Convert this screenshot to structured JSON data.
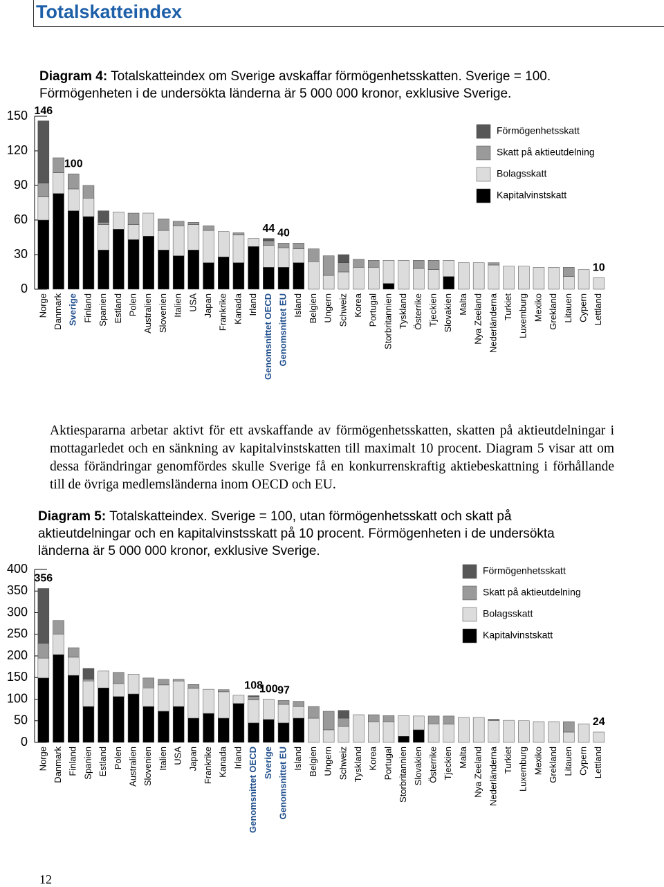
{
  "header": {
    "title": "Totalskatteindex"
  },
  "chart_data": [
    {
      "type": "bar",
      "stacked": true,
      "title_label": "Diagram 4:",
      "title": "Totalskatteindex om Sverige avskaffar förmögenhetsskatten. Sverige = 100. Förmögenheten i de undersökta länderna är 5 000 000 kronor, exklusive Sverige.",
      "categories": [
        "Norge",
        "Danmark",
        "Sverige",
        "Finland",
        "Spanien",
        "Estland",
        "Polen",
        "Australien",
        "Slovenien",
        "Italien",
        "USA",
        "Japan",
        "Frankrike",
        "Kanada",
        "Irland",
        "Genomsnittet OECD",
        "Genomsnittet EU",
        "Island",
        "Belgien",
        "Ungern",
        "Schweiz",
        "Korea",
        "Portugal",
        "Storbritannien",
        "Tyskland",
        "Österrike",
        "Tjeckien",
        "Slovakien",
        "Malta",
        "Nya Zeeland",
        "Nederländerna",
        "Turkiet",
        "Luxemburg",
        "Mexiko",
        "Grekland",
        "Litauen",
        "Cypern",
        "Lettland"
      ],
      "highlighted": [
        2,
        15,
        16
      ],
      "series": [
        {
          "name": "Kapitalvinstskatt",
          "color": "#000000",
          "values": [
            60,
            83,
            68,
            63,
            34,
            52,
            43,
            46,
            34,
            29,
            34,
            23,
            28,
            23,
            37,
            19,
            19,
            23,
            0,
            0,
            0,
            0,
            0,
            5,
            0,
            0,
            0,
            11,
            0,
            0,
            0,
            0,
            0,
            0,
            0,
            0,
            0,
            0
          ]
        },
        {
          "name": "Bolagsskatt",
          "color": "#dcdcdc",
          "values": [
            20,
            18,
            19,
            16,
            22,
            15,
            13,
            20,
            17,
            26,
            22,
            28,
            22,
            24,
            7,
            19,
            17,
            12,
            24,
            12,
            15,
            19,
            19,
            20,
            25,
            18,
            17,
            14,
            23,
            23,
            21,
            20,
            20,
            19,
            19,
            11,
            17,
            10
          ]
        },
        {
          "name": "Skatt på aktieutdelning",
          "color": "#9a9a9a",
          "values": [
            12,
            13,
            13,
            11,
            2,
            0,
            10,
            0,
            10,
            4,
            2,
            4,
            0,
            2,
            0,
            4,
            4,
            5,
            11,
            17,
            8,
            7,
            6,
            0,
            0,
            7,
            8,
            0,
            0,
            0,
            2,
            0,
            0,
            0,
            0,
            8,
            0,
            0
          ]
        },
        {
          "name": "Förmögenhetsskatt",
          "color": "#575757",
          "values": [
            54,
            0,
            0,
            0,
            10,
            0,
            0,
            0,
            0,
            0,
            0,
            0,
            0,
            0,
            0,
            2,
            0,
            0,
            0,
            0,
            7,
            0,
            0,
            0,
            0,
            0,
            0,
            0,
            0,
            0,
            0,
            0,
            0,
            0,
            0,
            0,
            0,
            0
          ]
        }
      ],
      "total_labels": [
        146,
        null,
        100,
        null,
        null,
        null,
        null,
        null,
        null,
        null,
        null,
        null,
        null,
        null,
        null,
        44,
        40,
        null,
        null,
        null,
        null,
        null,
        null,
        null,
        null,
        null,
        null,
        null,
        null,
        null,
        null,
        null,
        null,
        null,
        null,
        null,
        null,
        10
      ],
      "ylim": [
        0,
        150
      ],
      "yticks": [
        0,
        30,
        60,
        90,
        120,
        150
      ],
      "grid": false,
      "legend": "top-right"
    },
    {
      "type": "bar",
      "stacked": true,
      "title_label": "Diagram 5:",
      "title": "Totalskatteindex. Sverige = 100, utan förmögenhetsskatt och skatt på aktieutdelningar och en kapitalvinstsskatt på 10 procent. Förmögenheten i de undersökta länderna är 5 000 000 kronor, exklusive Sverige.",
      "categories": [
        "Norge",
        "Danmark",
        "Finland",
        "Spanien",
        "Estland",
        "Polen",
        "Australien",
        "Slovenien",
        "Italien",
        "USA",
        "Japan",
        "Frankrike",
        "Kanada",
        "Irland",
        "Genomsnittet OECD",
        "Sverige",
        "Genomsnittet EU",
        "Island",
        "Belgien",
        "Ungern",
        "Schweiz",
        "Tyskland",
        "Korea",
        "Portugal",
        "Storbritannien",
        "Slovakien",
        "Österrike",
        "Tjeckien",
        "Malta",
        "Nya Zeeland",
        "Nederländerna",
        "Turkiet",
        "Luxemburg",
        "Mexiko",
        "Grekland",
        "Litauen",
        "Cypern",
        "Lettland"
      ],
      "highlighted": [
        14,
        15,
        16
      ],
      "series": [
        {
          "name": "Kapitalvinstskatt",
          "color": "#000000",
          "values": [
            149,
            203,
            155,
            83,
            126,
            106,
            112,
            83,
            72,
            83,
            56,
            67,
            56,
            90,
            45,
            53,
            45,
            56,
            0,
            0,
            0,
            0,
            0,
            0,
            14,
            29,
            0,
            0,
            0,
            0,
            0,
            0,
            0,
            0,
            0,
            0,
            0,
            0
          ]
        },
        {
          "name": "Bolagsskatt",
          "color": "#dcdcdc",
          "values": [
            46,
            47,
            42,
            59,
            39,
            30,
            46,
            43,
            61,
            59,
            69,
            56,
            61,
            19,
            53,
            47,
            43,
            27,
            56,
            29,
            37,
            64,
            48,
            48,
            48,
            32,
            43,
            42,
            58,
            58,
            50,
            51,
            50,
            48,
            48,
            24,
            43,
            24
          ]
        },
        {
          "name": "Skatt på aktieutdelning",
          "color": "#9a9a9a",
          "values": [
            34,
            32,
            22,
            4,
            0,
            26,
            0,
            23,
            13,
            4,
            9,
            0,
            5,
            0,
            8,
            0,
            9,
            12,
            27,
            43,
            19,
            0,
            16,
            14,
            0,
            0,
            18,
            19,
            0,
            0,
            4,
            0,
            0,
            0,
            0,
            24,
            0,
            0
          ]
        },
        {
          "name": "Förmögenhetsskatt",
          "color": "#575757",
          "values": [
            127,
            0,
            0,
            25,
            0,
            0,
            0,
            0,
            0,
            0,
            0,
            0,
            0,
            0,
            2,
            0,
            0,
            0,
            0,
            0,
            18,
            0,
            0,
            0,
            0,
            0,
            0,
            0,
            0,
            0,
            0,
            0,
            0,
            0,
            0,
            0,
            0,
            0
          ]
        }
      ],
      "total_labels": [
        356,
        null,
        null,
        null,
        null,
        null,
        null,
        null,
        null,
        null,
        null,
        null,
        null,
        null,
        108,
        100,
        97,
        null,
        null,
        null,
        null,
        null,
        null,
        null,
        null,
        null,
        null,
        null,
        null,
        null,
        null,
        null,
        null,
        null,
        null,
        null,
        null,
        24
      ],
      "ylim": [
        0,
        400
      ],
      "yticks": [
        0,
        50,
        100,
        150,
        200,
        250,
        300,
        350,
        400
      ],
      "grid": false,
      "legend": "top-right"
    }
  ],
  "paragraph": "Aktiespararna arbetar aktivt för ett avskaffande av förmögenhetsskatten, skatten på aktieutdelningar i mottagarledet och en sänkning av kapitalvinstskatten till maximalt 10 procent. Diagram 5 visar att om dessa förändringar genomfördes skulle Sverige få en konkurrenskraftig aktiebeskattning i förhållande till de övriga medlemsländerna inom OECD och EU.",
  "page_number": "12"
}
